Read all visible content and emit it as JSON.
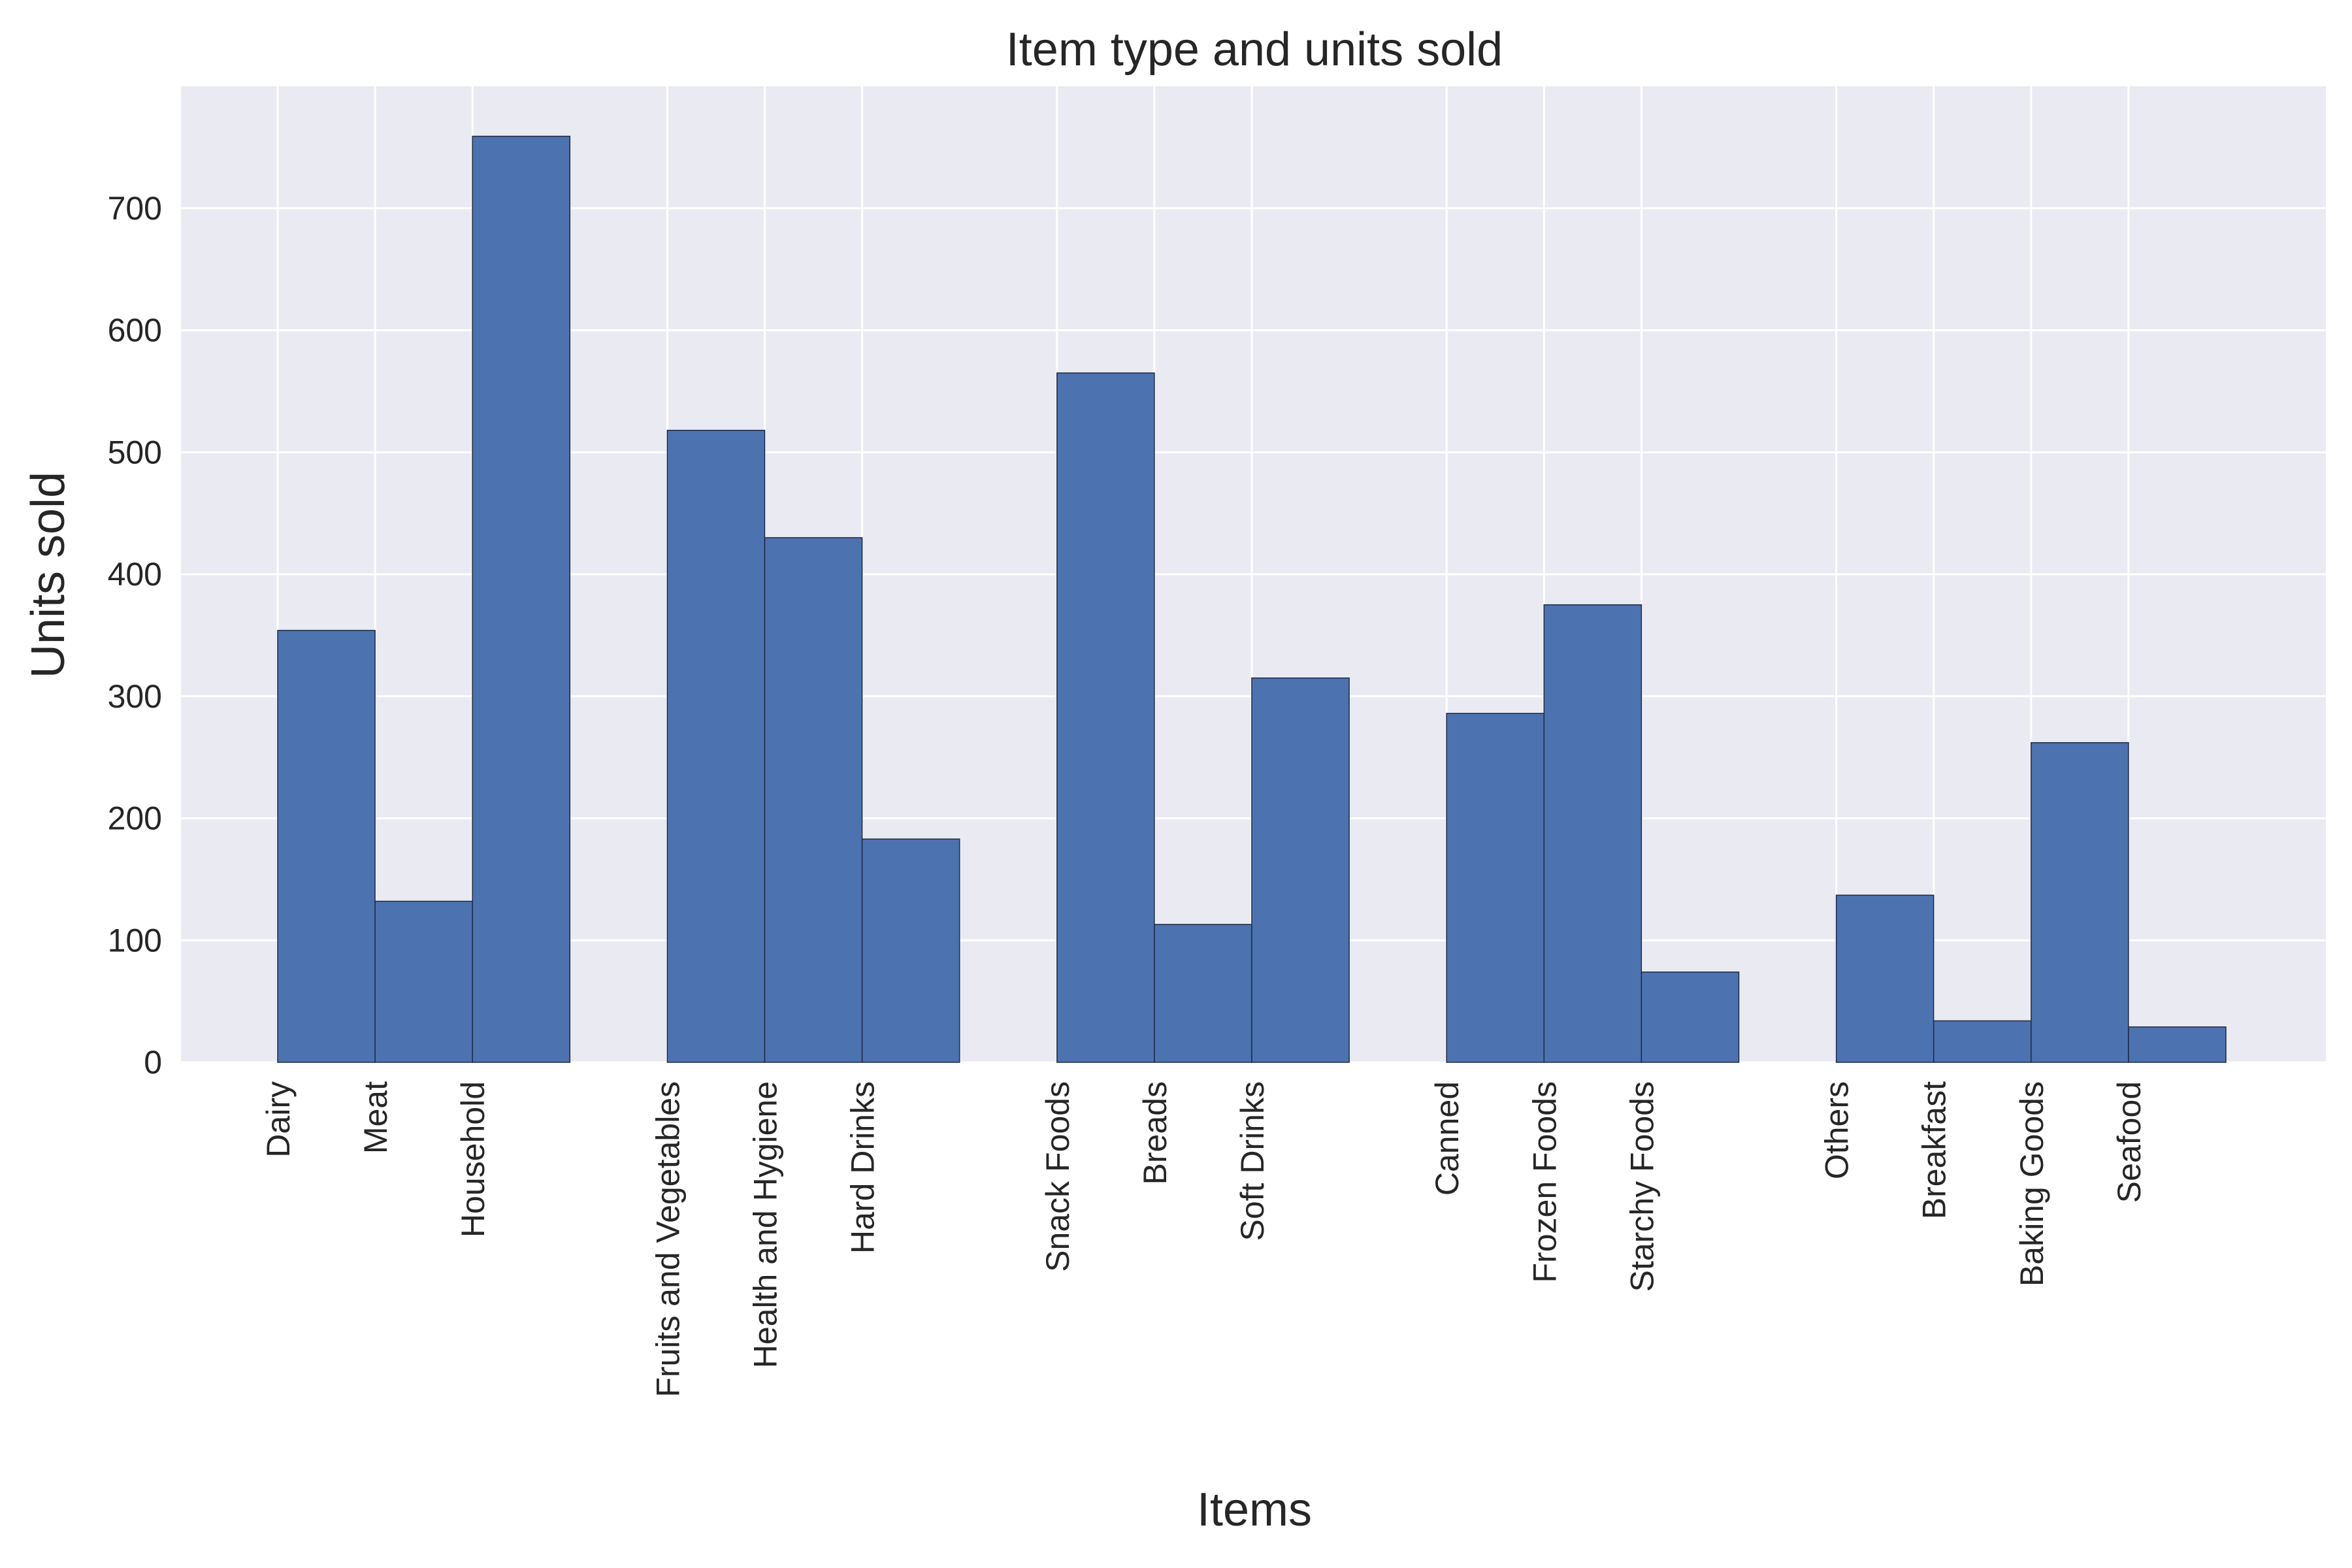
{
  "chart_data": {
    "type": "bar",
    "title": "Item type and units sold",
    "xlabel": "Items",
    "ylabel": "Units sold",
    "ylim": [
      0,
      800
    ],
    "yticks": [
      0,
      100,
      200,
      300,
      400,
      500,
      600,
      700
    ],
    "grid": true,
    "bar_color": "#4c72b0",
    "edge_color": "#1f2a44",
    "plot_background": "#eaeaf2",
    "grid_color": "#ffffff",
    "categories": [
      "Dairy",
      "Meat",
      "Household",
      "Fruits and Vegetables",
      "Health and Hygiene",
      "Hard Drinks",
      "Snack Foods",
      "Breads",
      "Soft Drinks",
      "Canned",
      "Frozen Foods",
      "Starchy Foods",
      "Others",
      "Breakfast",
      "Baking Goods",
      "Seafood"
    ],
    "bins": [
      {
        "value": 354,
        "category_index": 0
      },
      {
        "value": 132,
        "category_index": 1
      },
      {
        "value": 759,
        "category_index": 2
      },
      {
        "value": 0
      },
      {
        "value": 518,
        "category_index": 3
      },
      {
        "value": 430,
        "category_index": 4
      },
      {
        "value": 183,
        "category_index": 5
      },
      {
        "value": 0
      },
      {
        "value": 565,
        "category_index": 6
      },
      {
        "value": 113,
        "category_index": 7
      },
      {
        "value": 315,
        "category_index": 8
      },
      {
        "value": 0
      },
      {
        "value": 286,
        "category_index": 9
      },
      {
        "value": 375,
        "category_index": 10
      },
      {
        "value": 74,
        "category_index": 11
      },
      {
        "value": 0
      },
      {
        "value": 137,
        "category_index": 12
      },
      {
        "value": 34,
        "category_index": 13
      },
      {
        "value": 262,
        "category_index": 14
      },
      {
        "value": 29,
        "category_index": 15
      }
    ]
  }
}
